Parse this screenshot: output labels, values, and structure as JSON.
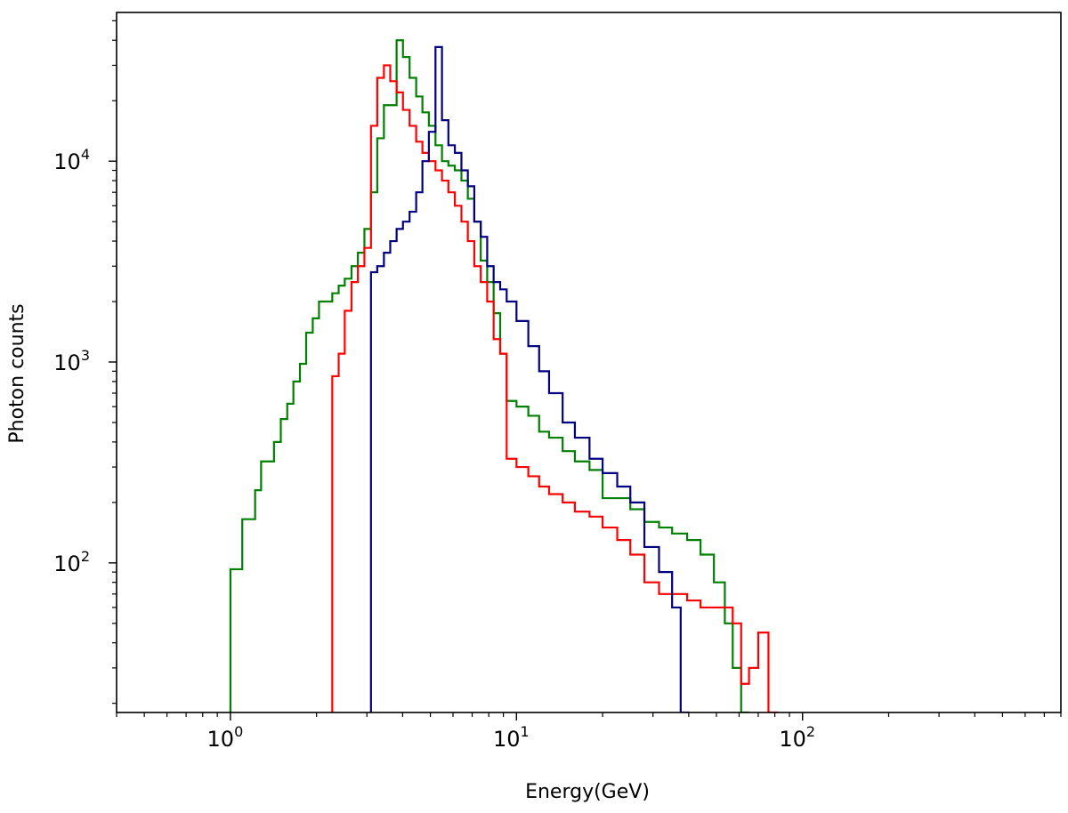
{
  "chart_data": {
    "type": "line",
    "title": "",
    "xlabel": "Energy(GeV)",
    "ylabel": "Photon counts",
    "xscale": "log",
    "yscale": "log",
    "xlim": [
      0.4,
      800
    ],
    "ylim": [
      18,
      55000
    ],
    "grid": false,
    "legend": "none",
    "xticks": [
      {
        "value": 1,
        "base": "10",
        "exp": "0"
      },
      {
        "value": 10,
        "base": "10",
        "exp": "1"
      },
      {
        "value": 100,
        "base": "10",
        "exp": "2"
      }
    ],
    "yticks": [
      {
        "value": 100,
        "base": "10",
        "exp": "2"
      },
      {
        "value": 1000,
        "base": "10",
        "exp": "3"
      },
      {
        "value": 10000,
        "base": "10",
        "exp": "4"
      }
    ],
    "series": [
      {
        "color": "#008000",
        "x": [
          1.0,
          1.05,
          1.1,
          1.16,
          1.22,
          1.28,
          1.35,
          1.42,
          1.5,
          1.58,
          1.66,
          1.75,
          1.84,
          1.94,
          2.04,
          2.15,
          2.27,
          2.39,
          2.51,
          2.65,
          2.79,
          2.94,
          3.1,
          3.26,
          3.44,
          3.62,
          3.81,
          4.01,
          4.23,
          4.46,
          4.69,
          4.94,
          5.21,
          5.49,
          5.78,
          6.09,
          6.42,
          6.76,
          7.12,
          7.5,
          7.9,
          8.32,
          8.77,
          9.24,
          10.0,
          11.0,
          12.0,
          13.0,
          14.5,
          16.0,
          18.0,
          20.0,
          22.5,
          25.0,
          28.0,
          31.5,
          35.0,
          39.5,
          44.0,
          49.0,
          53.5,
          57.0,
          61.0
        ],
        "y": [
          93,
          93,
          165,
          165,
          230,
          320,
          320,
          400,
          520,
          620,
          800,
          980,
          1400,
          1650,
          2000,
          2000,
          2200,
          2400,
          2600,
          3000,
          3500,
          4600,
          7000,
          13000,
          19000,
          19000,
          40000,
          33000,
          26000,
          21000,
          17500,
          15000,
          12000,
          10000,
          9500,
          9000,
          8000,
          6500,
          5000,
          3200,
          2500,
          1750,
          1100,
          640,
          600,
          540,
          450,
          420,
          360,
          320,
          290,
          210,
          210,
          185,
          160,
          150,
          140,
          130,
          110,
          80,
          50,
          30,
          18
        ]
      },
      {
        "color": "#ff0000",
        "x": [
          2.27,
          2.39,
          2.51,
          2.65,
          2.79,
          2.94,
          3.1,
          3.26,
          3.44,
          3.62,
          3.81,
          4.01,
          4.23,
          4.46,
          4.69,
          4.94,
          5.21,
          5.49,
          5.78,
          6.09,
          6.42,
          6.76,
          7.12,
          7.5,
          7.9,
          8.32,
          8.77,
          9.24,
          10.0,
          11.0,
          12.0,
          13.0,
          14.5,
          16.0,
          18.0,
          20.0,
          22.5,
          25.0,
          28.0,
          31.5,
          35.0,
          39.5,
          44.0,
          49.0,
          53.5,
          57.0,
          61.0,
          65.0,
          70.0,
          76.0
        ],
        "y": [
          850,
          1100,
          1800,
          2500,
          3000,
          3700,
          15000,
          26000,
          30000,
          25000,
          22000,
          18000,
          15000,
          12500,
          11000,
          10000,
          9000,
          8000,
          7000,
          6000,
          5000,
          4000,
          3000,
          2500,
          2000,
          1300,
          1100,
          330,
          300,
          270,
          240,
          220,
          200,
          180,
          170,
          150,
          130,
          110,
          80,
          70,
          70,
          65,
          60,
          60,
          60,
          50,
          25,
          30,
          45,
          18
        ]
      },
      {
        "color": "#000080",
        "x": [
          3.1,
          3.26,
          3.44,
          3.62,
          3.81,
          4.01,
          4.23,
          4.46,
          4.69,
          4.94,
          5.21,
          5.49,
          5.78,
          6.09,
          6.42,
          6.76,
          7.12,
          7.5,
          7.9,
          8.32,
          8.77,
          9.24,
          10.0,
          11.0,
          12.0,
          13.0,
          14.5,
          16.0,
          18.0,
          20.0,
          22.5,
          25.0,
          28.0,
          31.5,
          35.0,
          37.5
        ],
        "y": [
          2800,
          3000,
          3500,
          4000,
          4600,
          5000,
          5600,
          7000,
          10000,
          14000,
          37000,
          16000,
          12000,
          11000,
          9000,
          7500,
          5000,
          4200,
          3000,
          2500,
          2300,
          2000,
          1600,
          1200,
          900,
          700,
          500,
          420,
          330,
          280,
          240,
          200,
          120,
          90,
          60,
          18
        ]
      }
    ]
  }
}
